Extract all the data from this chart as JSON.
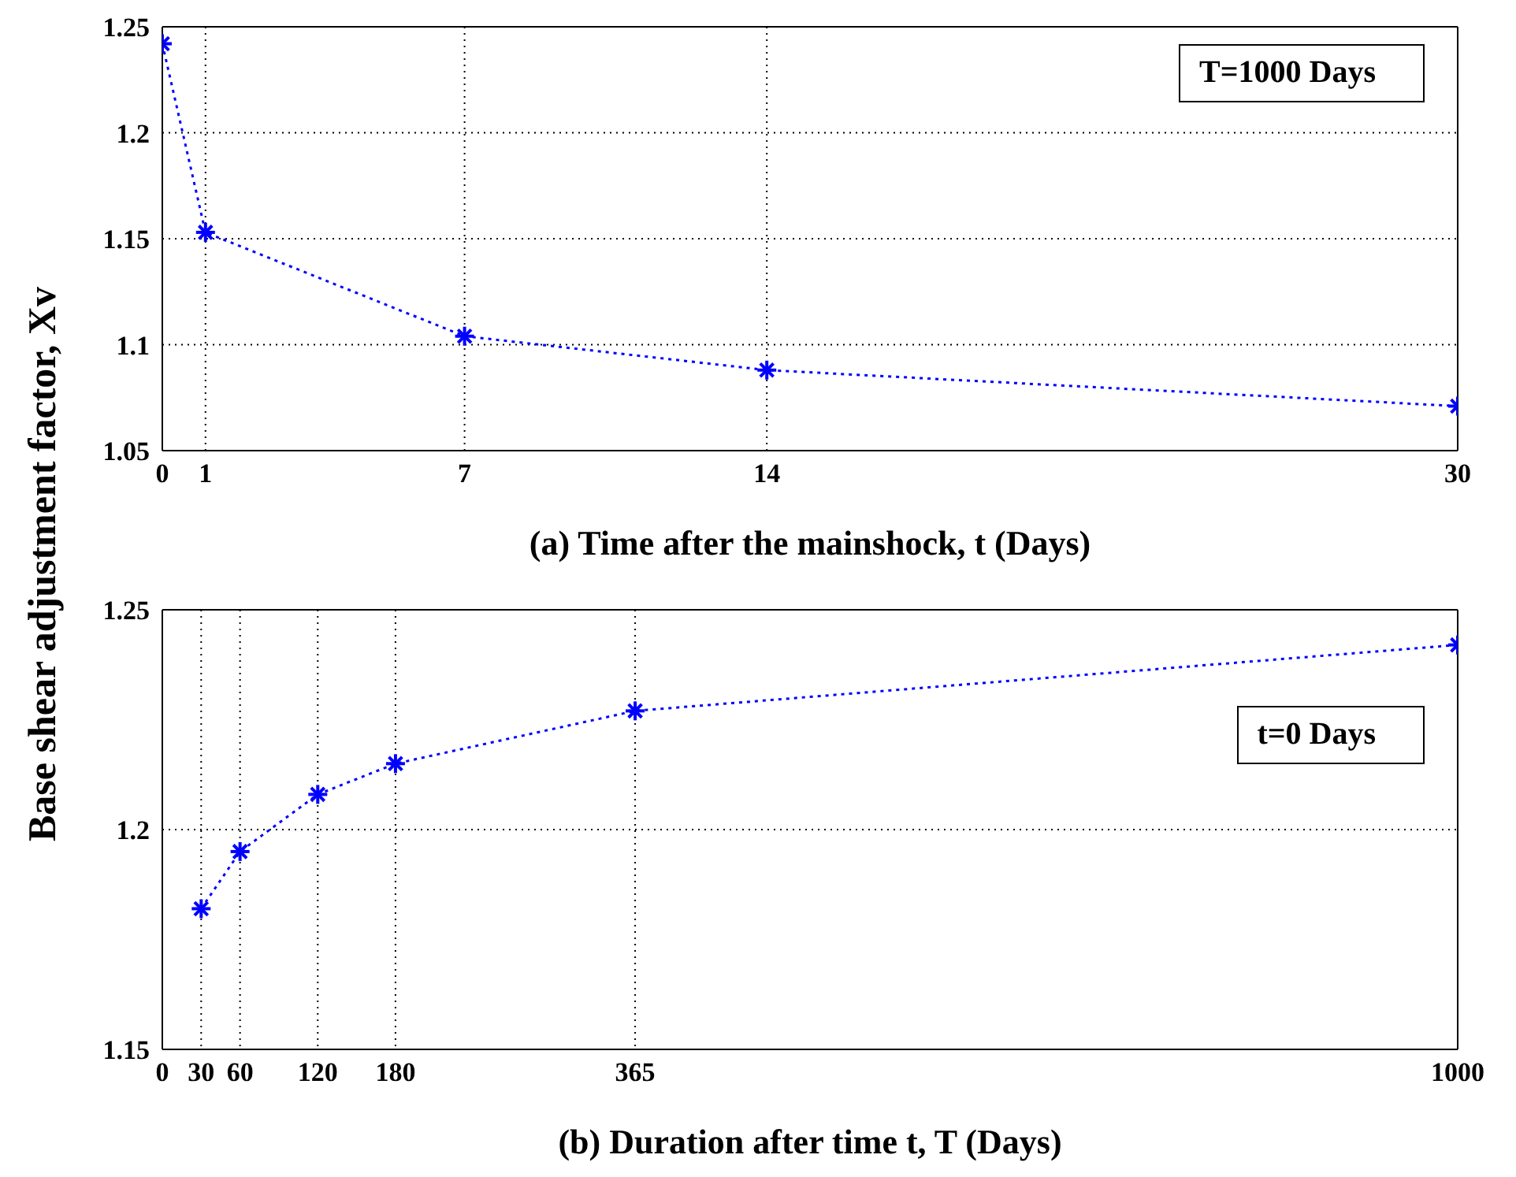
{
  "chart_data": [
    {
      "type": "line",
      "ylabel": "Base shear adjustment factor, Xv",
      "xlabel": "(a) Time after the mainshock, t (Days)",
      "annotations": [
        "T=1000 Days"
      ],
      "x": [
        0,
        1,
        7,
        14,
        30
      ],
      "series": [
        {
          "color": "#0000ff",
          "values": [
            1.242,
            1.153,
            1.104,
            1.088,
            1.071
          ]
        }
      ],
      "xlim": [
        0,
        30
      ],
      "xticks": [
        0,
        1,
        7,
        14,
        30
      ],
      "ylim": [
        1.05,
        1.25
      ],
      "yticks": [
        1.05,
        1.1,
        1.15,
        1.2,
        1.25
      ],
      "grid": true,
      "legend": false,
      "marker": "cross",
      "line_style": "dotted"
    },
    {
      "type": "line",
      "xlabel": "(b) Duration after time t, T (Days)",
      "annotations": [
        "t=0 Days"
      ],
      "x": [
        30,
        60,
        120,
        180,
        365,
        1000
      ],
      "series": [
        {
          "color": "#0000ff",
          "values": [
            1.182,
            1.195,
            1.208,
            1.215,
            1.227,
            1.242
          ]
        }
      ],
      "xlim": [
        0,
        1000
      ],
      "xticks": [
        0,
        30,
        60,
        120,
        180,
        365,
        1000
      ],
      "ylim": [
        1.15,
        1.25
      ],
      "yticks": [
        1.15,
        1.2,
        1.25
      ],
      "grid": true,
      "legend": false,
      "marker": "cross",
      "line_style": "dotted"
    }
  ]
}
